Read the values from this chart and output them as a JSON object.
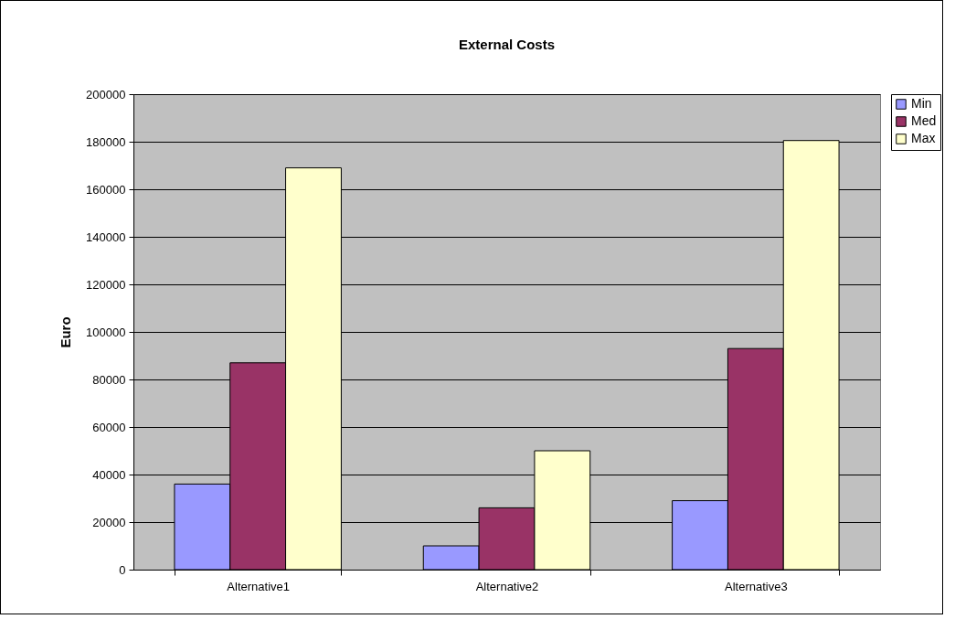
{
  "chart_data": {
    "type": "bar",
    "title": "External Costs",
    "ylabel": "Euro",
    "categories": [
      "Alternative1",
      "Alternative2",
      "Alternative3"
    ],
    "series": [
      {
        "name": "Min",
        "color": "#9999ff",
        "values": [
          36000,
          10000,
          29000
        ]
      },
      {
        "name": "Med",
        "color": "#993366",
        "values": [
          87000,
          26000,
          93000
        ]
      },
      {
        "name": "Max",
        "color": "#ffffcc",
        "values": [
          169000,
          50000,
          180500
        ]
      }
    ],
    "ylim": [
      0,
      200000
    ],
    "yticks": [
      0,
      20000,
      40000,
      60000,
      80000,
      100000,
      120000,
      140000,
      160000,
      180000,
      200000
    ],
    "grid": "y",
    "legend": "right"
  }
}
